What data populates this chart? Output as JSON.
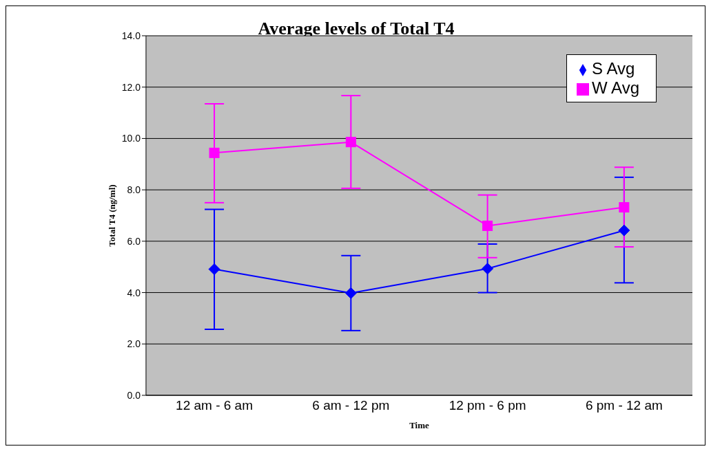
{
  "chart_data": {
    "type": "line",
    "title": "Average levels of Total T4",
    "xlabel": "Time",
    "ylabel": "Total T4 (ng/ml)",
    "categories": [
      "12 am - 6 am",
      "6 am - 12 pm",
      "12 pm - 6 pm",
      "6 pm - 12 am"
    ],
    "series": [
      {
        "name": "S Avg",
        "color": "#0000ff",
        "marker": "diamond",
        "values": [
          4.91,
          3.98,
          4.93,
          6.42
        ],
        "errors": [
          [
            2.57,
            7.24
          ],
          [
            2.52,
            5.44
          ],
          [
            4.0,
            5.89
          ],
          [
            4.38,
            8.49
          ]
        ]
      },
      {
        "name": "W Avg",
        "color": "#ff00ff",
        "marker": "square",
        "values": [
          9.44,
          9.86,
          6.6,
          7.32
        ],
        "errors": [
          [
            7.5,
            11.35
          ],
          [
            8.06,
            11.67
          ],
          [
            5.36,
            7.8
          ],
          [
            5.78,
            8.88
          ]
        ]
      }
    ],
    "ylim": [
      0,
      14
    ],
    "yticks": [
      {
        "value": 0,
        "label": "0.0"
      },
      {
        "value": 2,
        "label": "2.0"
      },
      {
        "value": 4,
        "label": "4.0"
      },
      {
        "value": 6,
        "label": "6.0"
      },
      {
        "value": 8,
        "label": "8.0"
      },
      {
        "value": 10,
        "label": "10.0"
      },
      {
        "value": 12,
        "label": "12.0"
      },
      {
        "value": 14,
        "label": "14.0"
      }
    ],
    "grid": "y",
    "legend": "top right",
    "line_style": "solid"
  }
}
